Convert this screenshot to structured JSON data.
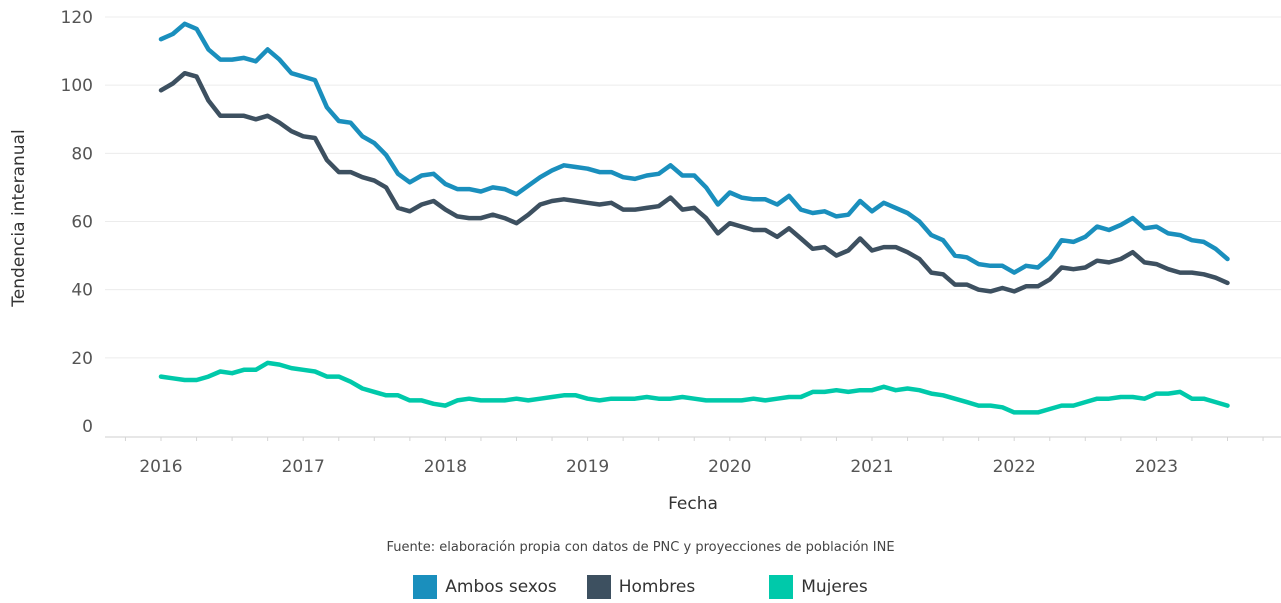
{
  "chart_data": {
    "type": "line",
    "title": "",
    "xlabel": "Fecha",
    "ylabel": "Tendencia interanual",
    "caption": "Fuente: elaboración propia con datos de PNC y proyecciones de población INE",
    "x_start": "2016-01",
    "x_end": "2023-07",
    "x_ticks": [
      "2016",
      "2017",
      "2018",
      "2019",
      "2020",
      "2021",
      "2022",
      "2023"
    ],
    "y_ticks": [
      "0",
      "20",
      "40",
      "60",
      "80",
      "100",
      "120"
    ],
    "ylim": [
      0,
      120
    ],
    "grid": true,
    "legend_position": "bottom",
    "series": [
      {
        "name": "Ambos sexos",
        "color": "#1a8fbd",
        "values": [
          113.5,
          115,
          118,
          116.5,
          110.5,
          107.5,
          107.5,
          108,
          107,
          110.5,
          107.5,
          103.5,
          102.5,
          101.5,
          93.5,
          89.5,
          89,
          85,
          83,
          79.5,
          74,
          71.5,
          73.5,
          74,
          71,
          69.5,
          69.5,
          68.8,
          70,
          69.5,
          68,
          70.5,
          73,
          75,
          76.5,
          76,
          75.5,
          74.5,
          74.5,
          73,
          72.5,
          73.5,
          74,
          76.5,
          73.5,
          73.5,
          70,
          65,
          68.5,
          67,
          66.5,
          66.5,
          65,
          67.5,
          63.5,
          62.5,
          63,
          61.5,
          62,
          66,
          63,
          65.5,
          64,
          62.5,
          60,
          56,
          54.5,
          50,
          49.5,
          47.5,
          47,
          47,
          45,
          47,
          46.5,
          49.5,
          54.5,
          54,
          55.5,
          58.5,
          57.5,
          59,
          61,
          58,
          58.5,
          56.5,
          56,
          54.5,
          54,
          52,
          49
        ]
      },
      {
        "name": "Hombres",
        "color": "#3d5060",
        "values": [
          98.5,
          100.5,
          103.5,
          102.5,
          95.5,
          91,
          91,
          91,
          90,
          91,
          89,
          86.5,
          85,
          84.5,
          78,
          74.5,
          74.5,
          73,
          72,
          70,
          64,
          63,
          65,
          66,
          63.5,
          61.5,
          61,
          61,
          62,
          61,
          59.5,
          62,
          65,
          66,
          66.5,
          66,
          65.5,
          65,
          65.5,
          63.5,
          63.5,
          64,
          64.5,
          67,
          63.5,
          64,
          61,
          56.5,
          59.5,
          58.5,
          57.5,
          57.5,
          55.5,
          58,
          55,
          52,
          52.5,
          50,
          51.5,
          55,
          51.5,
          52.5,
          52.5,
          51,
          49,
          45,
          44.5,
          41.5,
          41.5,
          40,
          39.5,
          40.5,
          39.5,
          41,
          41,
          43,
          46.5,
          46,
          46.5,
          48.5,
          48,
          49,
          51,
          48,
          47.5,
          46,
          45,
          45,
          44.5,
          43.5,
          42
        ]
      },
      {
        "name": "Mujeres",
        "color": "#00c9aa",
        "values": [
          14.5,
          14,
          13.5,
          13.5,
          14.5,
          16,
          15.5,
          16.5,
          16.5,
          18.5,
          18,
          17,
          16.5,
          16,
          14.5,
          14.5,
          13,
          11,
          10,
          9,
          9,
          7.5,
          7.5,
          6.5,
          6,
          7.5,
          8,
          7.5,
          7.5,
          7.5,
          8,
          7.5,
          8,
          8.5,
          9,
          9,
          8,
          7.5,
          8,
          8,
          8,
          8.5,
          8,
          8,
          8.5,
          8,
          7.5,
          7.5,
          7.5,
          7.5,
          8,
          7.5,
          8,
          8.5,
          8.5,
          10,
          10,
          10.5,
          10,
          10.5,
          10.5,
          11.5,
          10.5,
          11,
          10.5,
          9.5,
          9,
          8,
          7,
          6,
          6,
          5.5,
          4,
          4,
          4,
          5,
          6,
          6,
          7,
          8,
          8,
          8.5,
          8.5,
          8,
          9.5,
          9.5,
          10,
          8,
          8,
          7,
          6
        ]
      }
    ]
  }
}
